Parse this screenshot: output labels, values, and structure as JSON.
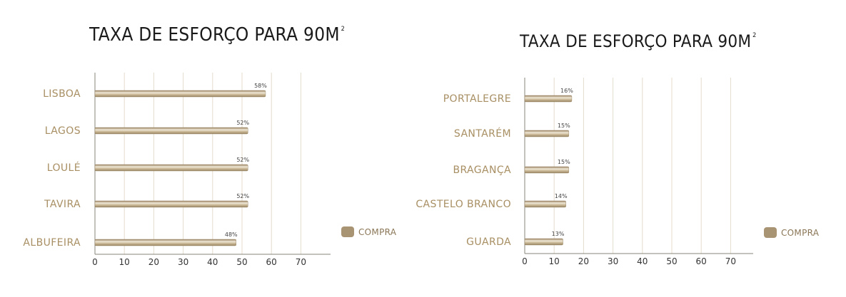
{
  "legend_label": "COMPRA",
  "colors": {
    "bar_light": "#efe6d6",
    "bar_mid": "#c9b896",
    "bar_dark": "#9a8562",
    "category_text": "#a88f63",
    "grid": "#e4dccd",
    "axis": "#8a8478",
    "tick_text": "#333333",
    "value_text": "#444444"
  },
  "chart_data": [
    {
      "type": "bar",
      "orientation": "horizontal",
      "title": "TAXA DE ESFORÇO PARA 90M",
      "title_superscript": "2",
      "categories": [
        "LISBOA",
        "LAGOS",
        "LOULÉ",
        "TAVIRA",
        "ALBUFEIRA"
      ],
      "series": [
        {
          "name": "COMPRA",
          "values": [
            58,
            52,
            52,
            52,
            48
          ]
        }
      ],
      "value_labels": [
        "58%",
        "52%",
        "52%",
        "52%",
        "48%"
      ],
      "xticks": [
        0,
        10,
        20,
        30,
        40,
        50,
        60,
        70
      ],
      "xlim": [
        0,
        80
      ],
      "grid": true,
      "legend_position": "right"
    },
    {
      "type": "bar",
      "orientation": "horizontal",
      "title": "TAXA DE ESFORÇO PARA 90M",
      "title_superscript": "2",
      "categories": [
        "PORTALEGRE",
        "SANTARÉM",
        "BRAGANÇA",
        "CASTELO BRANCO",
        "GUARDA"
      ],
      "series": [
        {
          "name": "COMPRA",
          "values": [
            16,
            15,
            15,
            14,
            13
          ]
        }
      ],
      "value_labels": [
        "16%",
        "15%",
        "15%",
        "14%",
        "13%"
      ],
      "xticks": [
        0,
        10,
        20,
        30,
        40,
        50,
        60,
        70
      ],
      "xlim": [
        0,
        80
      ],
      "grid": true,
      "legend_position": "right"
    }
  ]
}
